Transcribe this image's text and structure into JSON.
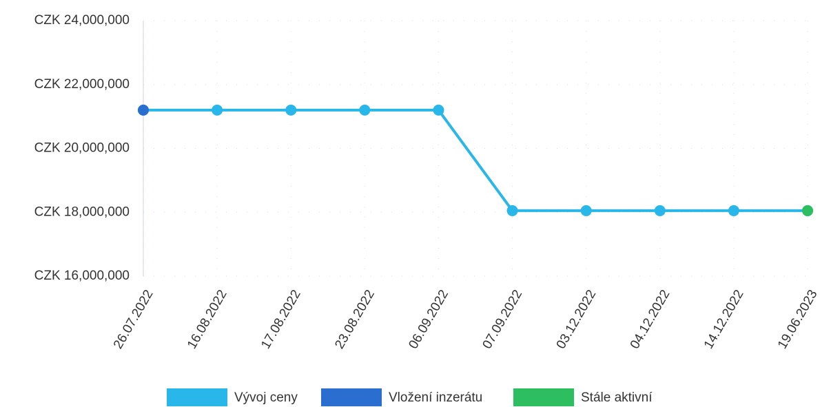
{
  "chart_data": {
    "type": "line",
    "categories": [
      "26.07.2022",
      "16.08.2022",
      "17.08.2022",
      "23.08.2022",
      "06.09.2022",
      "07.09.2022",
      "03.12.2022",
      "04.12.2022",
      "14.12.2022",
      "19.06.2023"
    ],
    "series": [
      {
        "name": "Vývoj ceny",
        "color": "#29b6e8",
        "values": [
          21200000,
          21200000,
          21200000,
          21200000,
          21200000,
          18050000,
          18050000,
          18050000,
          18050000,
          18050000
        ]
      },
      {
        "name": "Vložení inzerátu",
        "color": "#2a6fd0",
        "values": [
          21200000,
          null,
          null,
          null,
          null,
          null,
          null,
          null,
          null,
          null
        ]
      },
      {
        "name": "Stále aktivní",
        "color": "#2dbe60",
        "values": [
          null,
          null,
          null,
          null,
          null,
          null,
          null,
          null,
          null,
          18050000
        ]
      }
    ],
    "ylim": [
      16000000,
      24000000
    ],
    "yticks": [
      {
        "value": 16000000,
        "label": "CZK 16,000,000"
      },
      {
        "value": 18000000,
        "label": "CZK 18,000,000"
      },
      {
        "value": 20000000,
        "label": "CZK 20,000,000"
      },
      {
        "value": 22000000,
        "label": "CZK 22,000,000"
      },
      {
        "value": 24000000,
        "label": "CZK 24,000,000"
      }
    ],
    "grid": true
  }
}
